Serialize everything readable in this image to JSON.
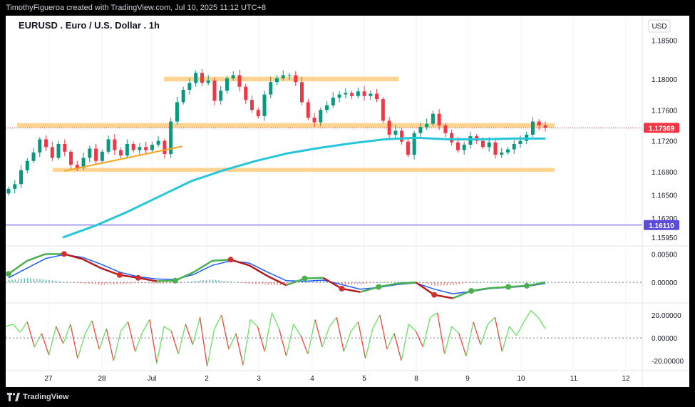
{
  "header": {
    "attribution": "TimothyFigueroa created with TradingView.com, Jul 10, 2025 11:12 UTC+8"
  },
  "footer": {
    "brand": "TradingView"
  },
  "chart_data": [
    {
      "type": "candlestick",
      "title": "EURUSD . Euro / U.S. Dollar . 1h",
      "currency": "USD",
      "x_tick_labels": [
        "27",
        "28",
        "Jul",
        "2",
        "3",
        "4",
        "5",
        "8",
        "9",
        "10",
        "11",
        "12"
      ],
      "y_tick_labels": [
        "1.18500",
        "1.18000",
        "1.17600",
        "1.17200",
        "1.16800",
        "1.16500",
        "1.16200",
        "1.15950"
      ],
      "y_range": [
        1.1585,
        1.1882
      ],
      "price_markers": [
        {
          "label": "1.17369",
          "value": 1.17369,
          "color": "#f23645"
        },
        {
          "label": "1.16110",
          "value": 1.1611,
          "color": "#5b4cdb"
        }
      ],
      "ohlc_close_path": [
        1.1658,
        1.1664,
        1.1682,
        1.1694,
        1.1705,
        1.1722,
        1.1712,
        1.1698,
        1.1716,
        1.1706,
        1.1689,
        1.1685,
        1.1698,
        1.171,
        1.1694,
        1.1706,
        1.1722,
        1.1708,
        1.1701,
        1.1716,
        1.1708,
        1.1712,
        1.1708,
        1.1715,
        1.172,
        1.1703,
        1.1745,
        1.177,
        1.1786,
        1.1795,
        1.1808,
        1.1795,
        1.1798,
        1.1772,
        1.1785,
        1.1801,
        1.1805,
        1.179,
        1.1773,
        1.176,
        1.1752,
        1.178,
        1.1796,
        1.1801,
        1.1805,
        1.1805,
        1.1796,
        1.177,
        1.175,
        1.1744,
        1.176,
        1.1766,
        1.1776,
        1.178,
        1.1782,
        1.1778,
        1.1784,
        1.1778,
        1.1781,
        1.1774,
        1.1746,
        1.1728,
        1.1733,
        1.1719,
        1.1702,
        1.173,
        1.1738,
        1.1742,
        1.1755,
        1.174,
        1.173,
        1.1718,
        1.1708,
        1.1715,
        1.1726,
        1.172,
        1.1712,
        1.1718,
        1.1702,
        1.1705,
        1.1709,
        1.1716,
        1.172,
        1.1728,
        1.1745,
        1.174,
        1.1737
      ],
      "moving_average": {
        "color": "#26c6da",
        "values": [
          1.1595,
          1.161,
          1.1628,
          1.1648,
          1.1668,
          1.1682,
          1.1694,
          1.1704,
          1.1711,
          1.1717,
          1.1722,
          1.1724,
          1.1722,
          1.1722,
          1.1723,
          1.1723
        ]
      },
      "zones": [
        {
          "from": 1.1803,
          "to": 1.1797
        },
        {
          "from": 1.1743,
          "to": 1.1737
        },
        {
          "from": 1.1685,
          "to": 1.168
        }
      ],
      "trendline": {
        "from": 1.1681,
        "to": 1.1713,
        "color": "#f5a623"
      }
    },
    {
      "type": "line",
      "name": "oscillator-1",
      "y_tick_labels": [
        "0.00500",
        "0.00000"
      ],
      "y_range": [
        -0.0035,
        0.0063
      ],
      "series": [
        {
          "color": "#b71c1c",
          "values": [
            0.0015,
            0.0038,
            0.005,
            0.005,
            0.0041,
            0.0025,
            0.0013,
            0.0008,
            0.0002,
            0.0003,
            0.0018,
            0.0038,
            0.004,
            0.003,
            0.0011,
            -0.0005,
            0.0007,
            0.0008,
            -0.0011,
            -0.0017,
            -0.0008,
            -0.0002,
            0.0,
            -0.0022,
            -0.0028,
            -0.0015,
            -0.001,
            -0.0008,
            -0.0006,
            0.0
          ]
        },
        {
          "color": "#1e5bff",
          "values": [
            0.0008,
            0.0025,
            0.0042,
            0.0049,
            0.0044,
            0.0032,
            0.0018,
            0.001,
            0.0006,
            0.0005,
            0.0014,
            0.003,
            0.0038,
            0.0034,
            0.0018,
            0.0003,
            0.0002,
            0.0004,
            -0.0004,
            -0.0012,
            -0.0009,
            -0.0004,
            -0.0001,
            -0.0012,
            -0.002,
            -0.0016,
            -0.0011,
            -0.0009,
            -0.0007,
            -0.0002
          ]
        }
      ]
    },
    {
      "type": "line",
      "name": "oscillator-2",
      "y_tick_labels": [
        "20.00000",
        "0.00000",
        "-20.00000"
      ],
      "y_range": [
        -28,
        30
      ],
      "values": [
        10,
        12,
        5,
        14,
        -8,
        4,
        -15,
        10,
        -5,
        12,
        -18,
        3,
        15,
        -10,
        8,
        -20,
        6,
        14,
        -12,
        5,
        16,
        -22,
        10,
        6,
        -14,
        12,
        -6,
        18,
        -25,
        8,
        20,
        -10,
        4,
        -24,
        16,
        10,
        -12,
        22,
        8,
        -16,
        12,
        2,
        -14,
        16,
        -8,
        10,
        18,
        -12,
        6,
        14,
        -18,
        8,
        20,
        -10,
        4,
        -20,
        12,
        6,
        -8,
        18,
        22,
        -14,
        10,
        4,
        -16,
        14,
        -6,
        12,
        18,
        -12,
        10,
        2,
        14,
        24,
        18,
        8
      ]
    }
  ]
}
